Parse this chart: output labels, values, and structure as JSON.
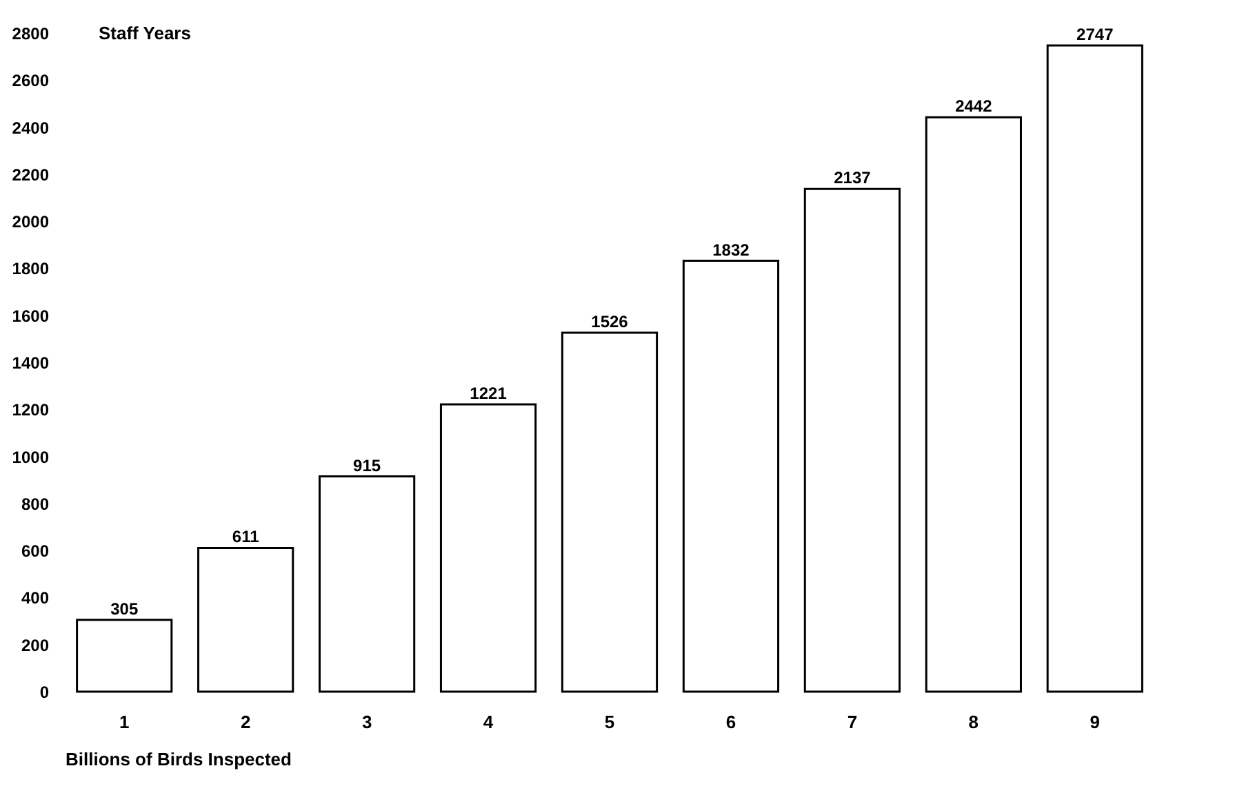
{
  "chart_data": {
    "type": "bar",
    "xlabel": "Billions of Birds Inspected",
    "ylabel": "Staff Years",
    "categories": [
      "1",
      "2",
      "3",
      "4",
      "5",
      "6",
      "7",
      "8",
      "9"
    ],
    "values": [
      305,
      611,
      915,
      1221,
      1526,
      1832,
      2137,
      2442,
      2747
    ],
    "color": "#ffffff",
    "ylim": [
      0,
      2800
    ],
    "yticks": [
      0,
      200,
      400,
      600,
      800,
      1000,
      1200,
      1400,
      1600,
      1800,
      2000,
      2200,
      2400,
      2600,
      2800
    ],
    "data_labels": true
  }
}
